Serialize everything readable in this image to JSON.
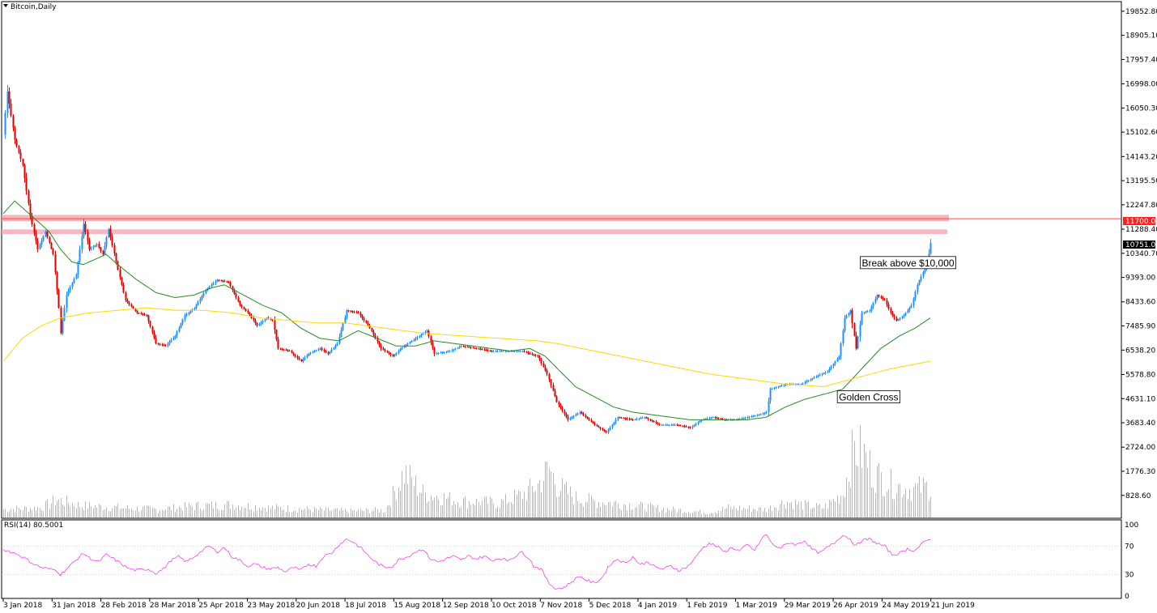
{
  "window": {
    "title": "Bitcoin,Daily"
  },
  "rsi": {
    "label": "RSI(14) 80.5001",
    "levels": [
      "100",
      "70",
      "30",
      "0"
    ]
  },
  "price_tags": {
    "resistance": "11700.00",
    "current": "10751.00"
  },
  "colors": {
    "up": "#1e90ff",
    "down": "#e00000",
    "ma_fast": "#228b22",
    "ma_slow": "#ffd700",
    "rsi": "#ee44ee",
    "resistance_zone": "#f4a6ae",
    "resistance_line": "#ff3333",
    "volume": "#b8b8b8"
  },
  "icons": {
    "dropdown": "triangle-down-icon"
  },
  "chart_data": {
    "type": "candlestick",
    "title": "Bitcoin,Daily",
    "y_ticks": [
      "19852.80",
      "18905.10",
      "17957.40",
      "16998.00",
      "16050.30",
      "15102.60",
      "14143.20",
      "13195.50",
      "12247.80",
      "11288.40",
      "10340.70",
      "9393.00",
      "8433.60",
      "7485.90",
      "6538.20",
      "5578.80",
      "4631.10",
      "3683.40",
      "2724.00",
      "1776.30",
      "828.60"
    ],
    "ylim": [
      -70,
      20230
    ],
    "x_ticks": [
      "3 Jan 2018",
      "31 Jan 2018",
      "28 Feb 2018",
      "28 Mar 2018",
      "25 Apr 2018",
      "23 May 2018",
      "20 Jun 2018",
      "18 Jul 2018",
      "15 Aug 2018",
      "12 Sep 2018",
      "10 Oct 2018",
      "7 Nov 2018",
      "5 Dec 2018",
      "4 Jan 2019",
      "1 Feb 2019",
      "1 Mar 2019",
      "29 Mar 2019",
      "26 Apr 2019",
      "24 May 2019",
      "21 Jun 2019"
    ],
    "price_anchors": [
      [
        0,
        15000
      ],
      [
        2,
        16700
      ],
      [
        6,
        14800
      ],
      [
        10,
        13800
      ],
      [
        14,
        11800
      ],
      [
        18,
        10500
      ],
      [
        22,
        11200
      ],
      [
        26,
        10300
      ],
      [
        29,
        8200
      ],
      [
        30,
        7200
      ],
      [
        33,
        8700
      ],
      [
        38,
        9500
      ],
      [
        42,
        11500
      ],
      [
        45,
        10500
      ],
      [
        49,
        10700
      ],
      [
        52,
        10300
      ],
      [
        55,
        11300
      ],
      [
        60,
        9700
      ],
      [
        64,
        8500
      ],
      [
        70,
        8000
      ],
      [
        75,
        7900
      ],
      [
        80,
        6800
      ],
      [
        85,
        6700
      ],
      [
        90,
        7100
      ],
      [
        95,
        7900
      ],
      [
        100,
        8200
      ],
      [
        106,
        8900
      ],
      [
        112,
        9300
      ],
      [
        118,
        9200
      ],
      [
        124,
        8300
      ],
      [
        128,
        8000
      ],
      [
        133,
        7500
      ],
      [
        138,
        7800
      ],
      [
        141,
        7700
      ],
      [
        144,
        6600
      ],
      [
        150,
        6500
      ],
      [
        156,
        6100
      ],
      [
        160,
        6400
      ],
      [
        166,
        6600
      ],
      [
        170,
        6400
      ],
      [
        175,
        6800
      ],
      [
        180,
        8100
      ],
      [
        186,
        8000
      ],
      [
        192,
        7400
      ],
      [
        198,
        6600
      ],
      [
        204,
        6300
      ],
      [
        210,
        6700
      ],
      [
        216,
        7000
      ],
      [
        222,
        7300
      ],
      [
        226,
        6400
      ],
      [
        234,
        6500
      ],
      [
        240,
        6700
      ],
      [
        248,
        6600
      ],
      [
        256,
        6500
      ],
      [
        264,
        6500
      ],
      [
        272,
        6500
      ],
      [
        280,
        6300
      ],
      [
        285,
        5600
      ],
      [
        290,
        4500
      ],
      [
        296,
        3800
      ],
      [
        302,
        4100
      ],
      [
        310,
        3600
      ],
      [
        316,
        3300
      ],
      [
        322,
        3900
      ],
      [
        330,
        3800
      ],
      [
        336,
        3900
      ],
      [
        344,
        3600
      ],
      [
        352,
        3600
      ],
      [
        360,
        3500
      ],
      [
        366,
        3800
      ],
      [
        372,
        3900
      ],
      [
        378,
        3800
      ],
      [
        384,
        3800
      ],
      [
        390,
        3900
      ],
      [
        396,
        4000
      ],
      [
        400,
        4100
      ],
      [
        402,
        5000
      ],
      [
        410,
        5200
      ],
      [
        418,
        5200
      ],
      [
        426,
        5500
      ],
      [
        432,
        5700
      ],
      [
        438,
        6300
      ],
      [
        441,
        7800
      ],
      [
        444,
        8100
      ],
      [
        447,
        6600
      ],
      [
        450,
        8000
      ],
      [
        454,
        8100
      ],
      [
        458,
        8700
      ],
      [
        462,
        8500
      ],
      [
        465,
        8000
      ],
      [
        468,
        7700
      ],
      [
        472,
        7900
      ],
      [
        476,
        8300
      ],
      [
        479,
        9100
      ],
      [
        482,
        9600
      ],
      [
        484,
        9900
      ],
      [
        486,
        10751
      ]
    ],
    "ma_fast_anchors": [
      [
        0,
        11900
      ],
      [
        6,
        12400
      ],
      [
        12,
        12000
      ],
      [
        18,
        11600
      ],
      [
        24,
        11200
      ],
      [
        30,
        10500
      ],
      [
        36,
        10000
      ],
      [
        42,
        9900
      ],
      [
        48,
        10100
      ],
      [
        54,
        10300
      ],
      [
        60,
        9900
      ],
      [
        70,
        9300
      ],
      [
        80,
        8800
      ],
      [
        90,
        8600
      ],
      [
        100,
        8700
      ],
      [
        110,
        9000
      ],
      [
        116,
        9100
      ],
      [
        126,
        8700
      ],
      [
        136,
        8300
      ],
      [
        146,
        8000
      ],
      [
        156,
        7400
      ],
      [
        166,
        7000
      ],
      [
        176,
        6900
      ],
      [
        186,
        7300
      ],
      [
        196,
        7000
      ],
      [
        206,
        6700
      ],
      [
        216,
        6700
      ],
      [
        226,
        6900
      ],
      [
        236,
        6800
      ],
      [
        246,
        6700
      ],
      [
        256,
        6600
      ],
      [
        266,
        6500
      ],
      [
        276,
        6600
      ],
      [
        284,
        6300
      ],
      [
        292,
        5700
      ],
      [
        300,
        5100
      ],
      [
        310,
        4700
      ],
      [
        320,
        4300
      ],
      [
        330,
        4100
      ],
      [
        340,
        4000
      ],
      [
        350,
        3900
      ],
      [
        360,
        3800
      ],
      [
        370,
        3800
      ],
      [
        380,
        3800
      ],
      [
        390,
        3800
      ],
      [
        400,
        3900
      ],
      [
        410,
        4300
      ],
      [
        420,
        4600
      ],
      [
        430,
        4800
      ],
      [
        440,
        5000
      ],
      [
        450,
        5800
      ],
      [
        460,
        6600
      ],
      [
        470,
        7100
      ],
      [
        478,
        7400
      ],
      [
        486,
        7800
      ]
    ],
    "ma_slow_anchors": [
      [
        0,
        6100
      ],
      [
        10,
        7000
      ],
      [
        20,
        7500
      ],
      [
        30,
        7800
      ],
      [
        45,
        8000
      ],
      [
        60,
        8100
      ],
      [
        75,
        8200
      ],
      [
        90,
        8100
      ],
      [
        105,
        8100
      ],
      [
        120,
        8000
      ],
      [
        135,
        7800
      ],
      [
        150,
        7700
      ],
      [
        165,
        7600
      ],
      [
        180,
        7600
      ],
      [
        200,
        7400
      ],
      [
        220,
        7200
      ],
      [
        240,
        7100
      ],
      [
        260,
        7000
      ],
      [
        280,
        6900
      ],
      [
        290,
        6800
      ],
      [
        310,
        6500
      ],
      [
        330,
        6200
      ],
      [
        350,
        5900
      ],
      [
        370,
        5600
      ],
      [
        390,
        5400
      ],
      [
        410,
        5200
      ],
      [
        430,
        5100
      ],
      [
        440,
        5300
      ],
      [
        450,
        5500
      ],
      [
        465,
        5800
      ],
      [
        486,
        6100
      ]
    ],
    "rsi_anchors": [
      [
        0,
        65
      ],
      [
        4,
        62
      ],
      [
        8,
        58
      ],
      [
        12,
        52
      ],
      [
        16,
        45
      ],
      [
        20,
        40
      ],
      [
        24,
        38
      ],
      [
        28,
        36
      ],
      [
        30,
        30
      ],
      [
        34,
        40
      ],
      [
        38,
        50
      ],
      [
        42,
        60
      ],
      [
        46,
        52
      ],
      [
        50,
        48
      ],
      [
        54,
        58
      ],
      [
        58,
        52
      ],
      [
        62,
        45
      ],
      [
        66,
        38
      ],
      [
        70,
        36
      ],
      [
        76,
        38
      ],
      [
        80,
        32
      ],
      [
        84,
        38
      ],
      [
        88,
        50
      ],
      [
        92,
        55
      ],
      [
        96,
        48
      ],
      [
        100,
        55
      ],
      [
        104,
        63
      ],
      [
        108,
        70
      ],
      [
        112,
        62
      ],
      [
        116,
        68
      ],
      [
        120,
        55
      ],
      [
        124,
        50
      ],
      [
        128,
        42
      ],
      [
        132,
        45
      ],
      [
        136,
        40
      ],
      [
        140,
        38
      ],
      [
        144,
        40
      ],
      [
        148,
        34
      ],
      [
        152,
        40
      ],
      [
        156,
        36
      ],
      [
        160,
        45
      ],
      [
        164,
        42
      ],
      [
        168,
        56
      ],
      [
        172,
        60
      ],
      [
        176,
        72
      ],
      [
        180,
        80
      ],
      [
        184,
        75
      ],
      [
        188,
        66
      ],
      [
        192,
        55
      ],
      [
        196,
        46
      ],
      [
        200,
        40
      ],
      [
        204,
        42
      ],
      [
        208,
        52
      ],
      [
        212,
        55
      ],
      [
        216,
        62
      ],
      [
        220,
        66
      ],
      [
        224,
        52
      ],
      [
        228,
        48
      ],
      [
        232,
        52
      ],
      [
        236,
        56
      ],
      [
        240,
        50
      ],
      [
        244,
        56
      ],
      [
        248,
        52
      ],
      [
        252,
        56
      ],
      [
        256,
        50
      ],
      [
        260,
        53
      ],
      [
        264,
        50
      ],
      [
        268,
        55
      ],
      [
        272,
        62
      ],
      [
        276,
        52
      ],
      [
        278,
        42
      ],
      [
        282,
        38
      ],
      [
        286,
        18
      ],
      [
        290,
        10
      ],
      [
        294,
        12
      ],
      [
        298,
        20
      ],
      [
        302,
        28
      ],
      [
        306,
        22
      ],
      [
        310,
        18
      ],
      [
        314,
        26
      ],
      [
        318,
        44
      ],
      [
        322,
        52
      ],
      [
        326,
        46
      ],
      [
        330,
        55
      ],
      [
        334,
        44
      ],
      [
        338,
        48
      ],
      [
        342,
        40
      ],
      [
        346,
        38
      ],
      [
        350,
        42
      ],
      [
        354,
        36
      ],
      [
        358,
        40
      ],
      [
        362,
        50
      ],
      [
        366,
        66
      ],
      [
        370,
        74
      ],
      [
        374,
        70
      ],
      [
        378,
        62
      ],
      [
        382,
        68
      ],
      [
        386,
        63
      ],
      [
        390,
        72
      ],
      [
        394,
        64
      ],
      [
        398,
        82
      ],
      [
        400,
        86
      ],
      [
        404,
        70
      ],
      [
        408,
        68
      ],
      [
        412,
        75
      ],
      [
        416,
        72
      ],
      [
        420,
        78
      ],
      [
        424,
        66
      ],
      [
        428,
        60
      ],
      [
        432,
        68
      ],
      [
        436,
        75
      ],
      [
        440,
        86
      ],
      [
        444,
        80
      ],
      [
        447,
        70
      ],
      [
        450,
        78
      ],
      [
        454,
        80
      ],
      [
        458,
        74
      ],
      [
        462,
        70
      ],
      [
        466,
        58
      ],
      [
        470,
        60
      ],
      [
        474,
        66
      ],
      [
        478,
        64
      ],
      [
        482,
        74
      ],
      [
        486,
        80.5
      ]
    ],
    "volume_anchors": [
      [
        0,
        10
      ],
      [
        20,
        12
      ],
      [
        28,
        22
      ],
      [
        40,
        15
      ],
      [
        60,
        12
      ],
      [
        80,
        10
      ],
      [
        100,
        14
      ],
      [
        120,
        16
      ],
      [
        140,
        12
      ],
      [
        160,
        10
      ],
      [
        180,
        8
      ],
      [
        200,
        9
      ],
      [
        210,
        55
      ],
      [
        220,
        30
      ],
      [
        240,
        20
      ],
      [
        260,
        18
      ],
      [
        272,
        28
      ],
      [
        280,
        40
      ],
      [
        286,
        60
      ],
      [
        290,
        40
      ],
      [
        300,
        24
      ],
      [
        310,
        20
      ],
      [
        320,
        18
      ],
      [
        340,
        12
      ],
      [
        360,
        8
      ],
      [
        370,
        6
      ],
      [
        380,
        12
      ],
      [
        400,
        10
      ],
      [
        410,
        20
      ],
      [
        420,
        15
      ],
      [
        430,
        12
      ],
      [
        440,
        30
      ],
      [
        446,
        85
      ],
      [
        450,
        80
      ],
      [
        456,
        55
      ],
      [
        466,
        40
      ],
      [
        476,
        35
      ],
      [
        486,
        38
      ]
    ],
    "annotations": [
      {
        "text": "Break above $10,000",
        "x_index": 462,
        "price": 10150
      },
      {
        "text": "Golden Cross",
        "x_index": 450,
        "price": 4880
      }
    ],
    "resistance_zones": [
      {
        "from": 11600,
        "to": 11850
      },
      {
        "from": 11100,
        "to": 11280
      }
    ],
    "resistance_level": 11700,
    "current_price": 10751,
    "rsi_levels": [
      100,
      70,
      30,
      0
    ],
    "legend": "none",
    "grid": false
  }
}
